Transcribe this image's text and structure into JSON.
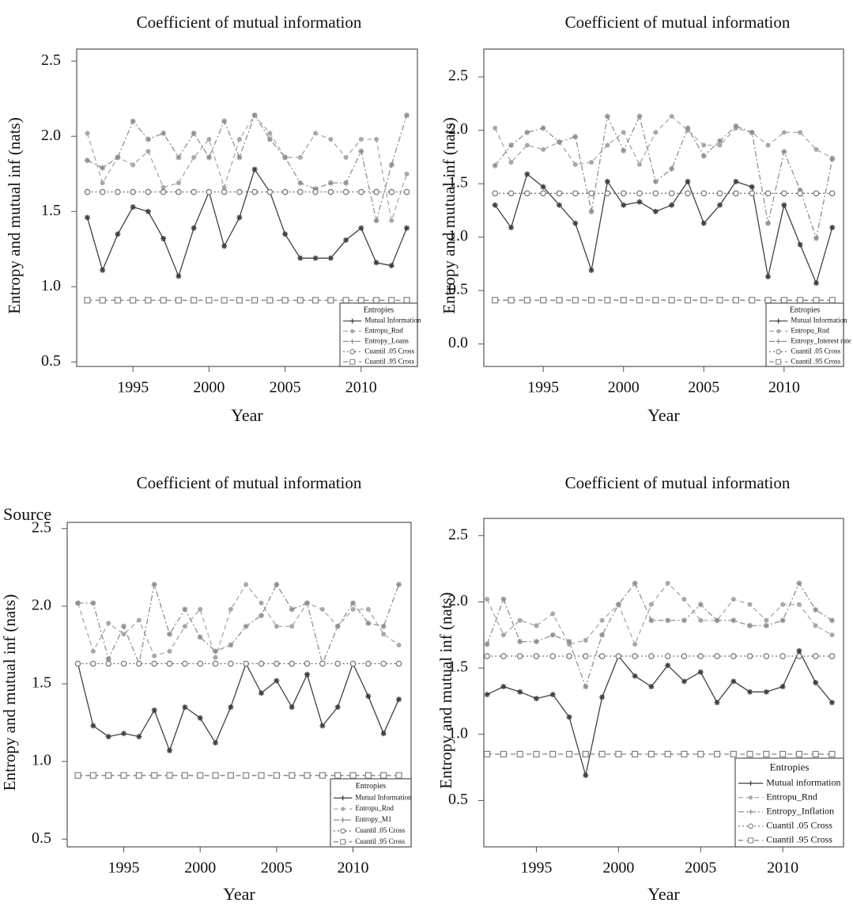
{
  "chart_data": [
    {
      "type": "line",
      "title": "Coefficient of mutual information",
      "x_label": "Year",
      "y_label": "Entropy and mutual inf (nats)",
      "x": [
        1992,
        1993,
        1994,
        1995,
        1996,
        1997,
        1998,
        1999,
        2000,
        2001,
        2002,
        2003,
        2004,
        2005,
        2006,
        2007,
        2008,
        2009,
        2010,
        2011,
        2012,
        2013
      ],
      "xlim": [
        1991.3,
        2013.7
      ],
      "xticks": [
        1995,
        2000,
        2005,
        2010
      ],
      "ylim": [
        0.47,
        2.58
      ],
      "yticks": [
        0.5,
        {
          "value": 1,
          "label": "1.0"
        },
        1.5,
        {
          "value": 2,
          "label": "2.0"
        },
        2.5
      ],
      "legend_title": "Entropies",
      "legend_position": "lower right",
      "series": [
        {
          "name": "Mutual Information",
          "color": "#404040",
          "line_style": "solid",
          "marker": "star",
          "values": [
            1.46,
            1.11,
            1.35,
            1.53,
            1.5,
            1.32,
            1.07,
            1.39,
            1.63,
            1.27,
            1.46,
            1.78,
            1.63,
            1.35,
            1.19,
            1.19,
            1.19,
            1.31,
            1.39,
            1.16,
            1.14,
            1.39
          ]
        },
        {
          "name": "Entropu_Rnd",
          "color": "#a8a8a8",
          "line_style": "dashed",
          "marker": "dot",
          "values": [
            2.02,
            1.69,
            1.86,
            1.81,
            1.9,
            1.66,
            1.69,
            1.86,
            1.98,
            1.66,
            1.98,
            2.14,
            2.02,
            1.86,
            1.86,
            2.02,
            1.98,
            1.86,
            1.98,
            1.98,
            1.44,
            1.75
          ]
        },
        {
          "name": "Entropy_Loans",
          "color": "#909090",
          "line_style": "dashdot",
          "marker": "star",
          "values": [
            1.84,
            1.79,
            1.86,
            2.1,
            1.98,
            2.02,
            1.86,
            2.02,
            1.86,
            2.1,
            1.86,
            2.14,
            1.98,
            1.86,
            1.69,
            1.65,
            1.69,
            1.69,
            1.9,
            1.44,
            1.81,
            2.14
          ]
        },
        {
          "name": "Cuantil .05 Cross",
          "color": "#707070",
          "line_style": "dotted",
          "marker": "open-circle",
          "values": [
            1.63,
            1.63,
            1.63,
            1.63,
            1.63,
            1.63,
            1.63,
            1.63,
            1.63,
            1.63,
            1.63,
            1.63,
            1.63,
            1.63,
            1.63,
            1.63,
            1.63,
            1.63,
            1.63,
            1.63,
            1.63,
            1.63
          ]
        },
        {
          "name": "Cuantil .95 Cross",
          "color": "#808080",
          "line_style": "dashed",
          "marker": "open-square",
          "values": [
            0.91,
            0.91,
            0.91,
            0.91,
            0.91,
            0.91,
            0.91,
            0.91,
            0.91,
            0.91,
            0.91,
            0.91,
            0.91,
            0.91,
            0.91,
            0.91,
            0.91,
            0.91,
            0.91,
            0.91,
            0.91,
            0.91
          ]
        }
      ]
    },
    {
      "type": "line",
      "title": "Coefficient of mutual information",
      "x_label": "Year",
      "y_label": "Entropy and mutual inf (nats)",
      "x": [
        1992,
        1993,
        1994,
        1995,
        1996,
        1997,
        1998,
        1999,
        2000,
        2001,
        2002,
        2003,
        2004,
        2005,
        2006,
        2007,
        2008,
        2009,
        2010,
        2011,
        2012,
        2013
      ],
      "xlim": [
        1991.3,
        2013.7
      ],
      "xticks": [
        1995,
        2000,
        2005,
        2010
      ],
      "ylim": [
        -0.21,
        2.76
      ],
      "yticks": [
        {
          "value": 0,
          "label": "0.0"
        },
        0.5,
        {
          "value": 1,
          "label": "1.0"
        },
        1.5,
        {
          "value": 2,
          "label": "2.0"
        },
        2.5
      ],
      "legend_title": "Entropies",
      "legend_position": "lower right",
      "series": [
        {
          "name": "Mutual Information",
          "color": "#404040",
          "line_style": "solid",
          "marker": "star",
          "values": [
            1.3,
            1.09,
            1.59,
            1.47,
            1.3,
            1.13,
            0.69,
            1.52,
            1.3,
            1.33,
            1.24,
            1.3,
            1.52,
            1.13,
            1.3,
            1.52,
            1.47,
            0.63,
            1.3,
            0.93,
            0.57,
            1.09
          ]
        },
        {
          "name": "Entropu_Rnd",
          "color": "#a8a8a8",
          "line_style": "dashed",
          "marker": "dot",
          "values": [
            2.02,
            1.7,
            1.86,
            1.82,
            1.89,
            1.68,
            1.7,
            1.86,
            1.98,
            1.68,
            1.98,
            2.13,
            2.0,
            1.86,
            1.86,
            2.02,
            1.98,
            1.86,
            1.98,
            1.98,
            1.82,
            1.74
          ]
        },
        {
          "name": "Entropy_Interest rate",
          "color": "#909090",
          "line_style": "dashdot",
          "marker": "star",
          "values": [
            1.67,
            1.86,
            1.98,
            2.02,
            1.89,
            1.94,
            1.24,
            2.13,
            1.81,
            2.13,
            1.52,
            1.64,
            2.02,
            1.76,
            1.9,
            2.04,
            1.98,
            1.13,
            1.8,
            1.44,
            0.99,
            1.73
          ]
        },
        {
          "name": "Cuantil .05 Cross",
          "color": "#707070",
          "line_style": "dotted",
          "marker": "open-circle",
          "values": [
            1.41,
            1.41,
            1.41,
            1.41,
            1.41,
            1.41,
            1.41,
            1.41,
            1.41,
            1.41,
            1.41,
            1.41,
            1.41,
            1.41,
            1.41,
            1.41,
            1.41,
            1.41,
            1.41,
            1.41,
            1.41,
            1.41
          ]
        },
        {
          "name": "Cuantil .95 Cross",
          "color": "#808080",
          "line_style": "dashed",
          "marker": "open-square",
          "values": [
            0.41,
            0.41,
            0.41,
            0.41,
            0.41,
            0.41,
            0.41,
            0.41,
            0.41,
            0.41,
            0.41,
            0.41,
            0.41,
            0.41,
            0.41,
            0.41,
            0.41,
            0.41,
            0.41,
            0.41,
            0.41,
            0.41
          ]
        }
      ]
    },
    {
      "type": "line",
      "title": "Coefficient of mutual information",
      "x_label": "Year",
      "y_label": "Entropy and mutual inf (nats)",
      "annotation": "Source",
      "x": [
        1992,
        1993,
        1994,
        1995,
        1996,
        1997,
        1998,
        1999,
        2000,
        2001,
        2002,
        2003,
        2004,
        2005,
        2006,
        2007,
        2008,
        2009,
        2010,
        2011,
        2012,
        2013
      ],
      "xlim": [
        1991.3,
        2013.8
      ],
      "xticks": [
        1995,
        2000,
        2005,
        2010
      ],
      "ylim": [
        0.45,
        2.54
      ],
      "yticks": [
        0.5,
        {
          "value": 1,
          "label": "1.0"
        },
        1.5,
        {
          "value": 2,
          "label": "2.0"
        },
        2.5
      ],
      "legend_title": "Entropies",
      "legend_position": "lower right",
      "series": [
        {
          "name": "Mutual Information",
          "color": "#404040",
          "line_style": "solid",
          "marker": "star",
          "values": [
            1.63,
            1.23,
            1.16,
            1.18,
            1.16,
            1.33,
            1.07,
            1.35,
            1.28,
            1.12,
            1.35,
            1.63,
            1.44,
            1.52,
            1.35,
            1.56,
            1.23,
            1.35,
            1.63,
            1.42,
            1.18,
            1.4
          ]
        },
        {
          "name": "Entropu_Rnd",
          "color": "#a8a8a8",
          "line_style": "dashed",
          "marker": "dot",
          "values": [
            2.02,
            1.71,
            1.89,
            1.82,
            1.91,
            1.68,
            1.71,
            1.87,
            1.98,
            1.67,
            1.98,
            2.14,
            2.02,
            1.87,
            1.87,
            2.02,
            1.98,
            1.87,
            1.98,
            1.98,
            1.82,
            1.75
          ]
        },
        {
          "name": "Entropy_M1",
          "color": "#909090",
          "line_style": "dashdot",
          "marker": "star",
          "values": [
            2.02,
            2.02,
            1.66,
            1.87,
            1.63,
            2.14,
            1.82,
            1.98,
            1.8,
            1.71,
            1.75,
            1.87,
            1.94,
            2.14,
            1.98,
            2.02,
            1.63,
            1.87,
            2.02,
            1.89,
            1.87,
            2.14
          ]
        },
        {
          "name": "Cuantil .05 Cross",
          "color": "#707070",
          "line_style": "dotted",
          "marker": "open-circle",
          "values": [
            1.63,
            1.63,
            1.63,
            1.63,
            1.63,
            1.63,
            1.63,
            1.63,
            1.63,
            1.63,
            1.63,
            1.63,
            1.63,
            1.63,
            1.63,
            1.63,
            1.63,
            1.63,
            1.63,
            1.63,
            1.63,
            1.63
          ]
        },
        {
          "name": "Cuantil .95 Cross",
          "color": "#808080",
          "line_style": "dashed",
          "marker": "open-square",
          "values": [
            0.91,
            0.91,
            0.91,
            0.91,
            0.91,
            0.91,
            0.91,
            0.91,
            0.91,
            0.91,
            0.91,
            0.91,
            0.91,
            0.91,
            0.91,
            0.91,
            0.91,
            0.91,
            0.91,
            0.91,
            0.91,
            0.91
          ]
        }
      ]
    },
    {
      "type": "line",
      "title": "Coefficient of mutual information",
      "x_label": "Year",
      "y_label": "Entropy and mutual inf (nats)",
      "x": [
        1992,
        1993,
        1994,
        1995,
        1996,
        1997,
        1998,
        1999,
        2000,
        2001,
        2002,
        2003,
        2004,
        2005,
        2006,
        2007,
        2008,
        2009,
        2010,
        2011,
        2012,
        2013
      ],
      "xlim": [
        1991.8,
        2013.7
      ],
      "xticks": [
        1995,
        2000,
        2005,
        2010
      ],
      "ylim": [
        0.15,
        2.63
      ],
      "yticks": [
        0.5,
        {
          "value": 1,
          "label": "1.0"
        },
        1.5,
        {
          "value": 2,
          "label": "2.0"
        },
        2.5
      ],
      "legend_title": "Entropies",
      "legend_position": "lower right",
      "series": [
        {
          "name": "Mutual information",
          "color": "#404040",
          "line_style": "solid",
          "marker": "star",
          "values": [
            1.3,
            1.36,
            1.32,
            1.27,
            1.3,
            1.13,
            0.69,
            1.28,
            1.59,
            1.44,
            1.36,
            1.52,
            1.4,
            1.47,
            1.24,
            1.4,
            1.32,
            1.32,
            1.36,
            1.63,
            1.39,
            1.24
          ]
        },
        {
          "name": "Entropu_Rnd",
          "color": "#a8a8a8",
          "line_style": "dashed",
          "marker": "dot",
          "values": [
            2.02,
            1.75,
            1.86,
            1.82,
            1.91,
            1.68,
            1.71,
            1.86,
            1.98,
            1.68,
            1.98,
            2.14,
            2.02,
            1.86,
            1.86,
            2.02,
            1.98,
            1.86,
            1.98,
            1.98,
            1.82,
            1.75
          ]
        },
        {
          "name": "Entropy_Inflation",
          "color": "#909090",
          "line_style": "dashdot",
          "marker": "star",
          "values": [
            1.68,
            2.02,
            1.7,
            1.7,
            1.75,
            1.7,
            1.36,
            1.75,
            1.98,
            2.14,
            1.86,
            1.86,
            1.86,
            1.98,
            1.86,
            1.86,
            1.82,
            1.82,
            1.86,
            2.14,
            1.94,
            1.86
          ]
        },
        {
          "name": "Cuantil .05 Cross",
          "color": "#707070",
          "line_style": "dotted",
          "marker": "open-circle",
          "values": [
            1.59,
            1.59,
            1.59,
            1.59,
            1.59,
            1.59,
            1.59,
            1.59,
            1.59,
            1.59,
            1.59,
            1.59,
            1.59,
            1.59,
            1.59,
            1.59,
            1.59,
            1.59,
            1.59,
            1.59,
            1.59,
            1.59
          ]
        },
        {
          "name": "Cuantil .95 Cross",
          "color": "#808080",
          "line_style": "dashed",
          "marker": "open-square",
          "values": [
            0.85,
            0.85,
            0.85,
            0.85,
            0.85,
            0.85,
            0.85,
            0.85,
            0.85,
            0.85,
            0.85,
            0.85,
            0.85,
            0.85,
            0.85,
            0.85,
            0.85,
            0.85,
            0.85,
            0.85,
            0.85,
            0.85
          ]
        }
      ]
    }
  ]
}
